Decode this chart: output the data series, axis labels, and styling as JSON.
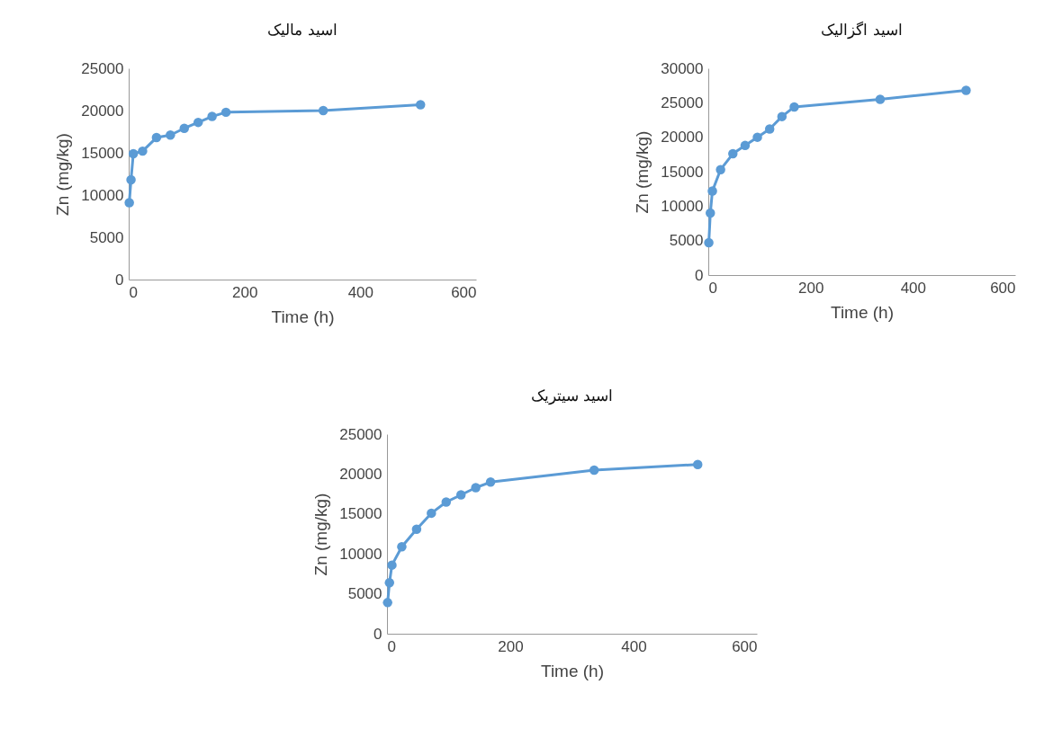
{
  "chart_data": [
    {
      "type": "line",
      "title": "اسید مالیک",
      "xlabel": "Time (h)",
      "ylabel": "Zn (mg/kg)",
      "x": [
        1,
        4,
        8,
        24,
        48,
        72,
        96,
        120,
        144,
        168,
        336,
        504
      ],
      "xlim": [
        0,
        600
      ],
      "xticks": [
        0,
        200,
        400,
        600
      ],
      "ylim": [
        0,
        25000
      ],
      "yticks": [
        0,
        5000,
        10000,
        15000,
        20000,
        25000
      ],
      "marker": "circle",
      "series": [
        {
          "color": "#5b9bd5",
          "values": [
            9100,
            11800,
            14900,
            15200,
            16800,
            17100,
            17900,
            18600,
            19300,
            19800,
            20000,
            20700
          ]
        }
      ]
    },
    {
      "type": "line",
      "title": "اسید اگزالیک",
      "xlabel": "Time (h)",
      "ylabel": "Zn (mg/kg)",
      "x": [
        1,
        4,
        8,
        24,
        48,
        72,
        96,
        120,
        144,
        168,
        336,
        504
      ],
      "xlim": [
        0,
        600
      ],
      "xticks": [
        0,
        200,
        400,
        600
      ],
      "ylim": [
        0,
        30000
      ],
      "yticks": [
        0,
        5000,
        10000,
        15000,
        20000,
        25000,
        30000
      ],
      "marker": "circle",
      "series": [
        {
          "color": "#5b9bd5",
          "values": [
            4700,
            9000,
            12200,
            15300,
            17600,
            18800,
            20000,
            21200,
            23000,
            24400,
            25500,
            26800
          ]
        }
      ]
    },
    {
      "type": "line",
      "title": "اسید سیتریک",
      "xlabel": "Time (h)",
      "ylabel": "Zn (mg/kg)",
      "x": [
        1,
        4,
        8,
        24,
        48,
        72,
        96,
        120,
        144,
        168,
        336,
        504
      ],
      "xlim": [
        0,
        600
      ],
      "xticks": [
        0,
        200,
        400,
        600
      ],
      "ylim": [
        0,
        25000
      ],
      "yticks": [
        0,
        5000,
        10000,
        15000,
        20000,
        25000
      ],
      "marker": "circle",
      "series": [
        {
          "color": "#5b9bd5",
          "values": [
            3900,
            6400,
            8600,
            10900,
            13100,
            15100,
            16500,
            17400,
            18300,
            19000,
            20500,
            21200
          ]
        }
      ]
    }
  ]
}
